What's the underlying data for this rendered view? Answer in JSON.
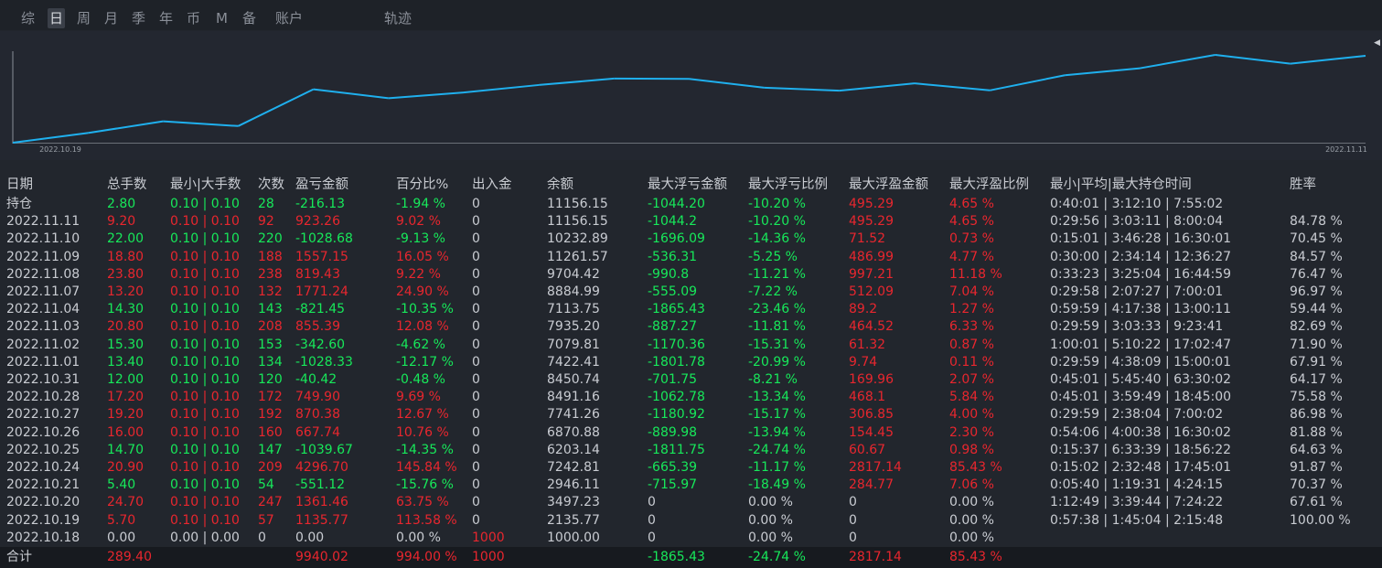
{
  "tabs": [
    "综",
    "日",
    "周",
    "月",
    "季",
    "年",
    "币",
    "M",
    "备",
    "账户",
    "轨迹"
  ],
  "active_tab": "日",
  "colors": {
    "background": "#22262d",
    "chart_background": "#232730",
    "line": "#1fb0ee",
    "positive": "#e8262e",
    "negative": "#17e85a",
    "neutral": "#c9ccd2"
  },
  "chart_data": {
    "type": "line",
    "x": [
      "2022.10.18",
      "2022.10.19",
      "2022.10.20",
      "2022.10.21",
      "2022.10.24",
      "2022.10.25",
      "2022.10.26",
      "2022.10.27",
      "2022.10.28",
      "2022.10.31",
      "2022.11.01",
      "2022.11.02",
      "2022.11.03",
      "2022.11.04",
      "2022.11.07",
      "2022.11.08",
      "2022.11.09",
      "2022.11.10",
      "2022.11.11"
    ],
    "y": [
      1000.0,
      2135.77,
      3497.23,
      2946.11,
      7242.81,
      6203.14,
      6870.88,
      7741.26,
      8491.16,
      8450.74,
      7422.41,
      7079.81,
      7935.2,
      7113.75,
      8884.99,
      9704.42,
      11261.57,
      10232.89,
      11156.15
    ],
    "tick_labels": [
      "2022.10.19",
      "2022.11.11"
    ],
    "grid": false
  },
  "table": {
    "headers": [
      "日期",
      "总手数",
      "最小|大手数",
      "次数",
      "盈亏金额",
      "百分比%",
      "出入金",
      "余额",
      "最大浮亏金额",
      "最大浮亏比例",
      "最大浮盈金额",
      "最大浮盈比例",
      "最小|平均|最大持仓时间",
      "胜率"
    ],
    "rows": [
      [
        "持仓",
        "2.80",
        "0.10 | 0.10",
        "28",
        "-216.13",
        "-1.94 %",
        "0",
        "11156.15",
        "-1044.20",
        "-10.20 %",
        "495.29",
        "4.65 %",
        "0:40:01 | 3:12:10 | 7:55:02",
        ""
      ],
      [
        "2022.11.11",
        "9.20",
        "0.10 | 0.10",
        "92",
        "923.26",
        "9.02 %",
        "0",
        "11156.15",
        "-1044.2",
        "-10.20 %",
        "495.29",
        "4.65 %",
        "0:29:56 | 3:03:11 | 8:00:04",
        "84.78 %"
      ],
      [
        "2022.11.10",
        "22.00",
        "0.10 | 0.10",
        "220",
        "-1028.68",
        "-9.13 %",
        "0",
        "10232.89",
        "-1696.09",
        "-14.36 %",
        "71.52",
        "0.73 %",
        "0:15:01 | 3:46:28 | 16:30:01",
        "70.45 %"
      ],
      [
        "2022.11.09",
        "18.80",
        "0.10 | 0.10",
        "188",
        "1557.15",
        "16.05 %",
        "0",
        "11261.57",
        "-536.31",
        "-5.25 %",
        "486.99",
        "4.77 %",
        "0:30:00 | 2:34:14 | 12:36:27",
        "84.57 %"
      ],
      [
        "2022.11.08",
        "23.80",
        "0.10 | 0.10",
        "238",
        "819.43",
        "9.22 %",
        "0",
        "9704.42",
        "-990.8",
        "-11.21 %",
        "997.21",
        "11.18 %",
        "0:33:23 | 3:25:04 | 16:44:59",
        "76.47 %"
      ],
      [
        "2022.11.07",
        "13.20",
        "0.10 | 0.10",
        "132",
        "1771.24",
        "24.90 %",
        "0",
        "8884.99",
        "-555.09",
        "-7.22 %",
        "512.09",
        "7.04 %",
        "0:29:58 | 2:07:27 | 7:00:01",
        "96.97 %"
      ],
      [
        "2022.11.04",
        "14.30",
        "0.10 | 0.10",
        "143",
        "-821.45",
        "-10.35 %",
        "0",
        "7113.75",
        "-1865.43",
        "-23.46 %",
        "89.2",
        "1.27 %",
        "0:59:59 | 4:17:38 | 13:00:11",
        "59.44 %"
      ],
      [
        "2022.11.03",
        "20.80",
        "0.10 | 0.10",
        "208",
        "855.39",
        "12.08 %",
        "0",
        "7935.20",
        "-887.27",
        "-11.81 %",
        "464.52",
        "6.33 %",
        "0:29:59 | 3:03:33 | 9:23:41",
        "82.69 %"
      ],
      [
        "2022.11.02",
        "15.30",
        "0.10 | 0.10",
        "153",
        "-342.60",
        "-4.62 %",
        "0",
        "7079.81",
        "-1170.36",
        "-15.31 %",
        "61.32",
        "0.87 %",
        "1:00:01 | 5:10:22 | 17:02:47",
        "71.90 %"
      ],
      [
        "2022.11.01",
        "13.40",
        "0.10 | 0.10",
        "134",
        "-1028.33",
        "-12.17 %",
        "0",
        "7422.41",
        "-1801.78",
        "-20.99 %",
        "9.74",
        "0.11 %",
        "0:29:59 | 4:38:09 | 15:00:01",
        "67.91 %"
      ],
      [
        "2022.10.31",
        "12.00",
        "0.10 | 0.10",
        "120",
        "-40.42",
        "-0.48 %",
        "0",
        "8450.74",
        "-701.75",
        "-8.21 %",
        "169.96",
        "2.07 %",
        "0:45:01 | 5:45:40 | 63:30:02",
        "64.17 %"
      ],
      [
        "2022.10.28",
        "17.20",
        "0.10 | 0.10",
        "172",
        "749.90",
        "9.69 %",
        "0",
        "8491.16",
        "-1062.78",
        "-13.34 %",
        "468.1",
        "5.84 %",
        "0:45:01 | 3:59:49 | 18:45:00",
        "75.58 %"
      ],
      [
        "2022.10.27",
        "19.20",
        "0.10 | 0.10",
        "192",
        "870.38",
        "12.67 %",
        "0",
        "7741.26",
        "-1180.92",
        "-15.17 %",
        "306.85",
        "4.00 %",
        "0:29:59 | 2:38:04 | 7:00:02",
        "86.98 %"
      ],
      [
        "2022.10.26",
        "16.00",
        "0.10 | 0.10",
        "160",
        "667.74",
        "10.76 %",
        "0",
        "6870.88",
        "-889.98",
        "-13.94 %",
        "154.45",
        "2.30 %",
        "0:54:06 | 4:00:38 | 16:30:02",
        "81.88 %"
      ],
      [
        "2022.10.25",
        "14.70",
        "0.10 | 0.10",
        "147",
        "-1039.67",
        "-14.35 %",
        "0",
        "6203.14",
        "-1811.75",
        "-24.74 %",
        "60.67",
        "0.98 %",
        "0:15:37 | 6:33:39 | 18:56:22",
        "64.63 %"
      ],
      [
        "2022.10.24",
        "20.90",
        "0.10 | 0.10",
        "209",
        "4296.70",
        "145.84 %",
        "0",
        "7242.81",
        "-665.39",
        "-11.17 %",
        "2817.14",
        "85.43 %",
        "0:15:02 | 2:32:48 | 17:45:01",
        "91.87 %"
      ],
      [
        "2022.10.21",
        "5.40",
        "0.10 | 0.10",
        "54",
        "-551.12",
        "-15.76 %",
        "0",
        "2946.11",
        "-715.97",
        "-18.49 %",
        "284.77",
        "7.06 %",
        "0:05:40 | 1:19:31 | 4:24:15",
        "70.37 %"
      ],
      [
        "2022.10.20",
        "24.70",
        "0.10 | 0.10",
        "247",
        "1361.46",
        "63.75 %",
        "0",
        "3497.23",
        "0",
        "0.00 %",
        "0",
        "0.00 %",
        "1:12:49 | 3:39:44 | 7:24:22",
        "67.61 %"
      ],
      [
        "2022.10.19",
        "5.70",
        "0.10 | 0.10",
        "57",
        "1135.77",
        "113.58 %",
        "0",
        "2135.77",
        "0",
        "0.00 %",
        "0",
        "0.00 %",
        "0:57:38 | 1:45:04 | 2:15:48",
        "100.00 %"
      ],
      [
        "2022.10.18",
        "0.00",
        "0.00 | 0.00",
        "0",
        "0.00",
        "0.00 %",
        "1000",
        "1000.00",
        "0",
        "0.00 %",
        "0",
        "0.00 %",
        "",
        ""
      ]
    ],
    "total": [
      "合计",
      "289.40",
      "",
      "",
      "9940.02",
      "994.00 %",
      "1000",
      "",
      "-1865.43",
      "-24.74 %",
      "2817.14",
      "85.43 %",
      "",
      ""
    ]
  }
}
